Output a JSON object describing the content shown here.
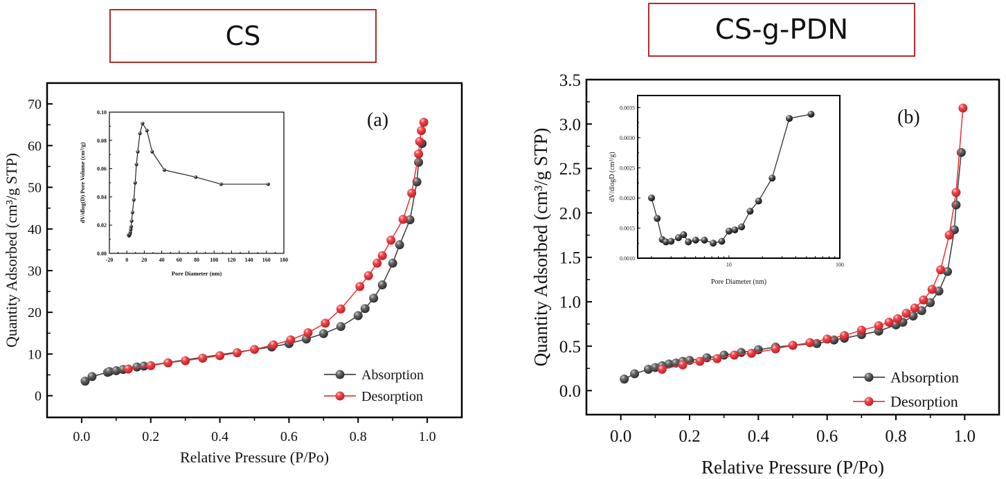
{
  "titles": {
    "left": "CS",
    "right": "CS-g-PDN"
  },
  "chart_data": [
    {
      "type": "line",
      "panel_label": "(a)",
      "title": "CS",
      "xlabel": "Relative Pressure (P/Po)",
      "ylabel": "Quantity Adsorbed (cm³/g STP)",
      "xlim": [
        -0.1,
        1.1
      ],
      "ylim": [
        -5.2,
        75
      ],
      "xticks": [
        0.0,
        0.2,
        0.4,
        0.6,
        0.8,
        1.0
      ],
      "xtick_labels": [
        "0.0",
        "0.2",
        "0.4",
        "0.6",
        "0.8",
        "1.0"
      ],
      "yticks": [
        0,
        10,
        20,
        30,
        40,
        50,
        60,
        70
      ],
      "ytick_labels": [
        "0",
        "10",
        "20",
        "30",
        "40",
        "50",
        "60",
        "70"
      ],
      "legend": "bottom-right",
      "grid": false,
      "series": [
        {
          "name": "Absorption",
          "color": "#444444",
          "x": [
            0.01,
            0.03,
            0.075,
            0.08,
            0.1,
            0.12,
            0.16,
            0.18,
            0.55,
            0.6,
            0.65,
            0.7,
            0.75,
            0.8,
            0.82,
            0.845,
            0.87,
            0.9,
            0.92,
            0.95,
            0.97,
            0.975,
            0.985
          ],
          "y": [
            3.5,
            4.6,
            5.6,
            5.8,
            6.0,
            6.3,
            6.9,
            7.1,
            11.7,
            12.5,
            13.6,
            14.9,
            16.6,
            19.2,
            20.9,
            23.4,
            26.6,
            31.8,
            36.2,
            42.2,
            51.3,
            56.0,
            60.5
          ]
        },
        {
          "name": "Desorption",
          "color": "#e8383d",
          "x": [
            0.135,
            0.2,
            0.25,
            0.3,
            0.35,
            0.4,
            0.45,
            0.5,
            0.555,
            0.605,
            0.655,
            0.705,
            0.75,
            0.805,
            0.83,
            0.855,
            0.87,
            0.895,
            0.93,
            0.955,
            0.975,
            0.978,
            0.983,
            0.99
          ],
          "y": [
            6.4,
            7.2,
            7.9,
            8.4,
            9.0,
            9.6,
            10.3,
            11.1,
            12.2,
            13.4,
            15.1,
            17.4,
            20.8,
            26.2,
            28.8,
            31.8,
            33.6,
            37.3,
            42.3,
            48.6,
            58.0,
            61.0,
            63.6,
            65.6
          ]
        }
      ],
      "inset": {
        "type": "line",
        "xlabel": "Pore Diameter (nm)",
        "ylabel": "dV/dlog(D) Pore Volume (cm³/g)",
        "xscale": "linear",
        "xlim": [
          -20,
          180
        ],
        "ylim": [
          0,
          0.1
        ],
        "xticks": [
          -20,
          0,
          20,
          40,
          60,
          80,
          100,
          120,
          140,
          160,
          180
        ],
        "xtick_labels": [
          "-20",
          "0",
          "20",
          "40",
          "60",
          "80",
          "100",
          "120",
          "140",
          "160",
          "180"
        ],
        "yticks": [
          0,
          0.02,
          0.04,
          0.06,
          0.08,
          0.1
        ],
        "ytick_labels": [
          "0.00",
          "0.02",
          "0.04",
          "0.06",
          "0.08",
          "0.10"
        ],
        "x": [
          2,
          2.5,
          3,
          3.5,
          4,
          4.5,
          5,
          5.5,
          6.5,
          8,
          9.5,
          11,
          12.5,
          15,
          18,
          23,
          29,
          43,
          79,
          108,
          162
        ],
        "y": [
          0.013,
          0.0125,
          0.013,
          0.0135,
          0.015,
          0.017,
          0.019,
          0.023,
          0.029,
          0.038,
          0.05,
          0.063,
          0.072,
          0.085,
          0.092,
          0.087,
          0.072,
          0.059,
          0.054,
          0.049,
          0.049
        ]
      }
    },
    {
      "type": "line",
      "panel_label": "(b)",
      "title": "CS-g-PDN",
      "xlabel": "Relative Pressure (P/Po)",
      "ylabel": "Quantity Adsorbed (cm³/g STP)",
      "xlim": [
        -0.1,
        1.1
      ],
      "ylim": [
        -0.27,
        3.5
      ],
      "xticks": [
        0.0,
        0.2,
        0.4,
        0.6,
        0.8,
        1.0
      ],
      "xtick_labels": [
        "0.0",
        "0.2",
        "0.4",
        "0.6",
        "0.8",
        "1.0"
      ],
      "yticks": [
        0.0,
        0.5,
        1.0,
        1.5,
        2.0,
        2.5,
        3.0,
        3.5
      ],
      "ytick_labels": [
        "0.0",
        "0.5",
        "1.0",
        "1.5",
        "2.0",
        "2.5",
        "3.0",
        "3.5"
      ],
      "legend": "bottom-right",
      "grid": false,
      "series": [
        {
          "name": "Absorption",
          "color": "#444444",
          "x": [
            0.01,
            0.04,
            0.08,
            0.1,
            0.12,
            0.14,
            0.16,
            0.18,
            0.2,
            0.25,
            0.3,
            0.35,
            0.4,
            0.45,
            0.5,
            0.57,
            0.62,
            0.65,
            0.7,
            0.75,
            0.8,
            0.82,
            0.85,
            0.875,
            0.9,
            0.925,
            0.95,
            0.97,
            0.975,
            0.99
          ],
          "y": [
            0.13,
            0.19,
            0.24,
            0.26,
            0.28,
            0.3,
            0.31,
            0.33,
            0.34,
            0.37,
            0.4,
            0.43,
            0.46,
            0.49,
            0.51,
            0.53,
            0.57,
            0.59,
            0.63,
            0.67,
            0.74,
            0.77,
            0.84,
            0.9,
            0.99,
            1.12,
            1.34,
            1.81,
            2.09,
            2.68
          ]
        },
        {
          "name": "Desorption",
          "color": "#e8383d",
          "x": [
            0.12,
            0.18,
            0.23,
            0.28,
            0.33,
            0.38,
            0.45,
            0.5,
            0.55,
            0.6,
            0.65,
            0.7,
            0.75,
            0.78,
            0.805,
            0.83,
            0.855,
            0.88,
            0.905,
            0.93,
            0.955,
            0.975,
            0.995
          ],
          "y": [
            0.24,
            0.29,
            0.33,
            0.36,
            0.4,
            0.42,
            0.47,
            0.51,
            0.54,
            0.58,
            0.62,
            0.68,
            0.73,
            0.77,
            0.81,
            0.87,
            0.93,
            1.02,
            1.14,
            1.36,
            1.75,
            2.23,
            3.18
          ]
        }
      ],
      "inset": {
        "type": "line",
        "xlabel": "Pore Diameter (nm)",
        "ylabel": "dV/dlogD (cm³/g)",
        "xscale": "log",
        "xlim": [
          1.5,
          100
        ],
        "ylim": [
          0.001,
          0.0037
        ],
        "xticks": [
          10,
          100
        ],
        "xtick_labels": [
          "10",
          "100"
        ],
        "yticks": [
          0.001,
          0.0015,
          0.002,
          0.0025,
          0.003,
          0.0035
        ],
        "ytick_labels": [
          "0.0010",
          "0.0015",
          "0.0020",
          "0.0025",
          "0.0030",
          "0.0035"
        ],
        "x": [
          2.0,
          2.25,
          2.5,
          2.7,
          3.0,
          3.5,
          3.9,
          4.3,
          5.0,
          6.0,
          7.2,
          8.6,
          10,
          11.3,
          13,
          15.5,
          18.5,
          24.5,
          35,
          55
        ],
        "y": [
          0.002,
          0.00166,
          0.00131,
          0.00127,
          0.00128,
          0.00134,
          0.00139,
          0.00127,
          0.0013,
          0.0013,
          0.00125,
          0.00128,
          0.00145,
          0.00147,
          0.00152,
          0.00178,
          0.00195,
          0.00233,
          0.00332,
          0.00339
        ]
      }
    }
  ]
}
